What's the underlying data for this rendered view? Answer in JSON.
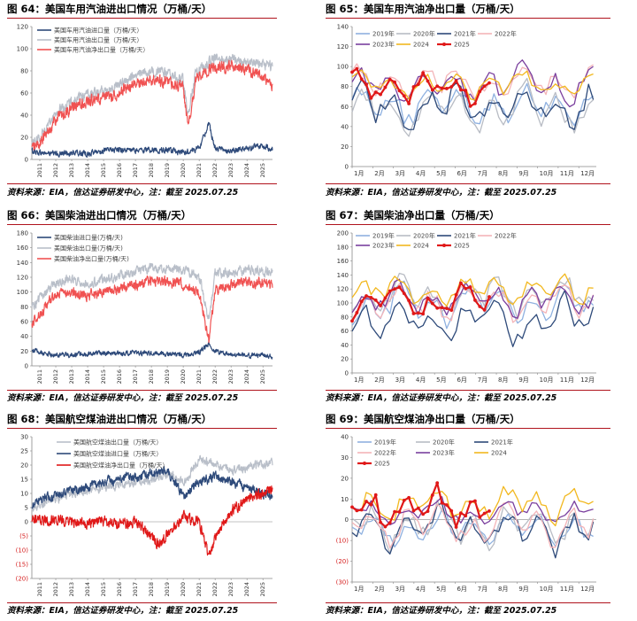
{
  "panels": [
    {
      "title": "图 64：美国车用汽油进出口情况（万桶/天）",
      "source": "资料来源：EIA，信达证券研发中心，注：截至 2025.07.25"
    },
    {
      "title": "图 65：美国车用汽油净出口量（万桶/天）",
      "source": "资料来源：EIA，信达证券研发中心，注：截至 2025.07.25"
    },
    {
      "title": "图 66：美国柴油进出口情况（万桶/天）",
      "source": "资料来源：EIA，信达证券研发中心，注：截至 2025.07.25"
    },
    {
      "title": "图 67：美国柴油净出口量（万桶/天）",
      "source": "资料来源：EIA，信达证券研发中心，注：截至 2025.07.25"
    },
    {
      "title": "图 68：美国航空煤油进出口情况（万桶/天）",
      "source": "资料来源：EIA，信达证券研发中心，注：截至 2025.07.25"
    },
    {
      "title": "图 69：美国航空煤油净出口量（万桶/天）",
      "source": "资料来源：EIA，信达证券研发中心，注：截至 2025.07.25"
    }
  ],
  "chart_data": [
    {
      "id": "c64",
      "type": "line",
      "ylim": [
        0,
        120
      ],
      "yticks": [
        0,
        20,
        40,
        60,
        80,
        100,
        120
      ],
      "xticks": [
        "2011",
        "2012",
        "2013",
        "2014",
        "2015",
        "2016",
        "2017",
        "2018",
        "2019",
        "2020",
        "2021",
        "2022",
        "2023",
        "2024",
        "2025"
      ],
      "legend_position": "top-left",
      "series": [
        {
          "name": "美国车用汽油进口量（万桶/天）",
          "color": "#2e4a7a",
          "anchors": [
            [
              2010.5,
              8
            ],
            [
              2011,
              6
            ],
            [
              2012,
              5
            ],
            [
              2013,
              6
            ],
            [
              2014,
              5
            ],
            [
              2015,
              8
            ],
            [
              2016,
              9
            ],
            [
              2017,
              8
            ],
            [
              2018,
              9
            ],
            [
              2019,
              8
            ],
            [
              2020,
              6
            ],
            [
              2021,
              10
            ],
            [
              2021.6,
              32
            ],
            [
              2022,
              10
            ],
            [
              2023,
              8
            ],
            [
              2024,
              10
            ],
            [
              2025,
              12
            ],
            [
              2025.55,
              10
            ]
          ],
          "noise": 4
        },
        {
          "name": "美国车用汽油出口量（万桶/天）",
          "color": "#b9bfc9",
          "anchors": [
            [
              2010.5,
              15
            ],
            [
              2011,
              20
            ],
            [
              2012,
              42
            ],
            [
              2013,
              52
            ],
            [
              2014,
              58
            ],
            [
              2015,
              62
            ],
            [
              2016,
              68
            ],
            [
              2017,
              76
            ],
            [
              2018,
              80
            ],
            [
              2019,
              78
            ],
            [
              2020,
              72
            ],
            [
              2020.3,
              40
            ],
            [
              2020.8,
              80
            ],
            [
              2021,
              82
            ],
            [
              2022,
              92
            ],
            [
              2023,
              90
            ],
            [
              2024,
              88
            ],
            [
              2025,
              86
            ],
            [
              2025.55,
              84
            ]
          ],
          "noise": 7
        },
        {
          "name": "美国车用汽油净出口量（万桶/天）",
          "color": "#f05252",
          "anchors": [
            [
              2010.5,
              10
            ],
            [
              2011,
              14
            ],
            [
              2012,
              36
            ],
            [
              2013,
              46
            ],
            [
              2014,
              52
            ],
            [
              2015,
              55
            ],
            [
              2016,
              60
            ],
            [
              2017,
              68
            ],
            [
              2018,
              72
            ],
            [
              2019,
              70
            ],
            [
              2020,
              65
            ],
            [
              2020.3,
              28
            ],
            [
              2020.8,
              72
            ],
            [
              2021,
              76
            ],
            [
              2022,
              84
            ],
            [
              2023,
              84
            ],
            [
              2024,
              80
            ],
            [
              2025,
              75
            ],
            [
              2025.55,
              68
            ]
          ],
          "noise": 8
        }
      ]
    },
    {
      "id": "c65",
      "type": "line",
      "ylim": [
        0,
        140
      ],
      "yticks": [
        0,
        20,
        40,
        60,
        80,
        100,
        120,
        140
      ],
      "xticks": [
        "1月",
        "2月",
        "3月",
        "4月",
        "5月",
        "6月",
        "7月",
        "8月",
        "9月",
        "10月",
        "11月",
        "12月"
      ],
      "legend_position": "top",
      "series": [
        {
          "name": "2019年",
          "color": "#8fb1e0",
          "base": 62,
          "amp": 18
        },
        {
          "name": "2020年",
          "color": "#b8bcc4",
          "base": 58,
          "amp": 22
        },
        {
          "name": "2021年",
          "color": "#2e4a7a",
          "base": 60,
          "amp": 22
        },
        {
          "name": "2022年",
          "color": "#f4b4b8",
          "base": 84,
          "amp": 16
        },
        {
          "name": "2023年",
          "color": "#7a3f9e",
          "base": 80,
          "amp": 20
        },
        {
          "name": "2024",
          "color": "#f2b81f",
          "base": 82,
          "amp": 12
        },
        {
          "name": "2025",
          "color": "#e01818",
          "base": 78,
          "amp": 16,
          "until": 30,
          "marker": true
        }
      ]
    },
    {
      "id": "c66",
      "type": "line",
      "ylim": [
        0,
        180
      ],
      "yticks": [
        0,
        20,
        40,
        60,
        80,
        100,
        120,
        140,
        160,
        180
      ],
      "xticks": [
        "2011",
        "2012",
        "2013",
        "2014",
        "2015",
        "2016",
        "2017",
        "2018",
        "2019",
        "2020",
        "2021",
        "2022",
        "2023",
        "2024",
        "2025"
      ],
      "legend_position": "top-left",
      "series": [
        {
          "name": "美国柴油进口量(万桶/天)",
          "color": "#2e4a7a",
          "anchors": [
            [
              2010.5,
              22
            ],
            [
              2011,
              18
            ],
            [
              2012,
              14
            ],
            [
              2013,
              15
            ],
            [
              2014,
              16
            ],
            [
              2015,
              18
            ],
            [
              2016,
              16
            ],
            [
              2017,
              18
            ],
            [
              2018,
              17
            ],
            [
              2019,
              16
            ],
            [
              2020,
              14
            ],
            [
              2021,
              18
            ],
            [
              2021.6,
              30
            ],
            [
              2022,
              20
            ],
            [
              2023,
              16
            ],
            [
              2024,
              14
            ],
            [
              2025,
              15
            ],
            [
              2025.55,
              12
            ]
          ],
          "noise": 5
        },
        {
          "name": "美国柴油出口量(万桶/天)",
          "color": "#b9bfc9",
          "anchors": [
            [
              2010.5,
              80
            ],
            [
              2011,
              92
            ],
            [
              2012,
              112
            ],
            [
              2013,
              118
            ],
            [
              2014,
              112
            ],
            [
              2015,
              118
            ],
            [
              2016,
              122
            ],
            [
              2017,
              128
            ],
            [
              2018,
              132
            ],
            [
              2019,
              132
            ],
            [
              2020,
              128
            ],
            [
              2021,
              122
            ],
            [
              2021.6,
              62
            ],
            [
              2022,
              124
            ],
            [
              2023,
              126
            ],
            [
              2024,
              130
            ],
            [
              2025,
              128
            ],
            [
              2025.55,
              126
            ]
          ],
          "noise": 10
        },
        {
          "name": "美国柴油净出口量(万桶/天)",
          "color": "#f05252",
          "anchors": [
            [
              2010.5,
              58
            ],
            [
              2011,
              70
            ],
            [
              2012,
              96
            ],
            [
              2013,
              100
            ],
            [
              2014,
              96
            ],
            [
              2015,
              100
            ],
            [
              2016,
              104
            ],
            [
              2017,
              110
            ],
            [
              2018,
              114
            ],
            [
              2019,
              114
            ],
            [
              2020,
              110
            ],
            [
              2021,
              100
            ],
            [
              2021.6,
              34
            ],
            [
              2022,
              104
            ],
            [
              2023,
              108
            ],
            [
              2024,
              114
            ],
            [
              2025,
              112
            ],
            [
              2025.55,
              110
            ]
          ],
          "noise": 11
        }
      ]
    },
    {
      "id": "c67",
      "type": "line",
      "ylim": [
        0,
        200
      ],
      "yticks": [
        0,
        20,
        40,
        60,
        80,
        100,
        120,
        140,
        160,
        180,
        200
      ],
      "xticks": [
        "1月",
        "2月",
        "3月",
        "4月",
        "5月",
        "6月",
        "7月",
        "8月",
        "9月",
        "10月",
        "11月",
        "12月"
      ],
      "legend_position": "top",
      "series": [
        {
          "name": "2019年",
          "color": "#8fb1e0",
          "base": 100,
          "amp": 28
        },
        {
          "name": "2020年",
          "color": "#b8bcc4",
          "base": 110,
          "amp": 25
        },
        {
          "name": "2021年",
          "color": "#2e4a7a",
          "base": 78,
          "amp": 32
        },
        {
          "name": "2022年",
          "color": "#f4b4b8",
          "base": 102,
          "amp": 25
        },
        {
          "name": "2023年",
          "color": "#7a3f9e",
          "base": 105,
          "amp": 22
        },
        {
          "name": "2024",
          "color": "#f2b81f",
          "base": 118,
          "amp": 20
        },
        {
          "name": "2025",
          "color": "#e01818",
          "base": 100,
          "amp": 24,
          "until": 30,
          "marker": true
        }
      ]
    },
    {
      "id": "c68",
      "type": "line",
      "ylim": [
        -20,
        30
      ],
      "yticks": [
        -20,
        -15,
        -10,
        -5,
        0,
        5,
        10,
        15,
        20,
        25,
        30
      ],
      "ytick_labels": [
        "(20)",
        "(15)",
        "(10)",
        "(5)",
        "0",
        "5",
        "10",
        "15",
        "20",
        "25",
        "30"
      ],
      "xticks": [
        "2011",
        "2012",
        "2013",
        "2014",
        "2015",
        "2016",
        "2017",
        "2018",
        "2019",
        "2020",
        "2021",
        "2022",
        "2023",
        "2024",
        "2025"
      ],
      "legend_position": "top-left",
      "series": [
        {
          "name": "美国航空煤油出口量（万桶/天）",
          "color": "#b9bfc9",
          "anchors": [
            [
              2010.5,
              5
            ],
            [
              2011,
              6
            ],
            [
              2012,
              8
            ],
            [
              2013,
              10
            ],
            [
              2014,
              11
            ],
            [
              2015,
              12
            ],
            [
              2016,
              13
            ],
            [
              2017,
              14
            ],
            [
              2018,
              15
            ],
            [
              2019,
              17
            ],
            [
              2020,
              14
            ],
            [
              2021,
              22
            ],
            [
              2022,
              20
            ],
            [
              2022.5,
              19
            ],
            [
              2023,
              18
            ],
            [
              2024,
              19
            ],
            [
              2025,
              20
            ],
            [
              2025.55,
              21
            ]
          ],
          "noise": 2.5
        },
        {
          "name": "美国航空煤油进口量（万桶/天）",
          "color": "#2e4a7a",
          "anchors": [
            [
              2010.5,
              6
            ],
            [
              2011,
              8
            ],
            [
              2012,
              9
            ],
            [
              2013,
              11
            ],
            [
              2014,
              12
            ],
            [
              2015,
              14
            ],
            [
              2016,
              15
            ],
            [
              2017,
              16
            ],
            [
              2018,
              17
            ],
            [
              2019,
              18
            ],
            [
              2020,
              9
            ],
            [
              2021,
              14
            ],
            [
              2022,
              16
            ],
            [
              2023,
              14
            ],
            [
              2024,
              12
            ],
            [
              2025,
              10
            ],
            [
              2025.55,
              9
            ]
          ],
          "noise": 2.5
        },
        {
          "name": "美国航空煤油净出口量（万桶/天）",
          "color": "#e01818",
          "anchors": [
            [
              2010.5,
              1
            ],
            [
              2011,
              0
            ],
            [
              2012,
              1
            ],
            [
              2013,
              0
            ],
            [
              2014,
              -1
            ],
            [
              2015,
              0
            ],
            [
              2016,
              -1
            ],
            [
              2017,
              0
            ],
            [
              2018,
              -5
            ],
            [
              2018.5,
              -8
            ],
            [
              2019,
              -4
            ],
            [
              2020,
              2
            ],
            [
              2021,
              0
            ],
            [
              2021.6,
              -12
            ],
            [
              2022,
              -6
            ],
            [
              2023,
              4
            ],
            [
              2024,
              8
            ],
            [
              2025,
              10
            ],
            [
              2025.55,
              12
            ]
          ],
          "noise": 3
        }
      ]
    },
    {
      "id": "c69",
      "type": "line",
      "ylim": [
        -30,
        40
      ],
      "yticks": [
        -30,
        -20,
        -10,
        0,
        10,
        20,
        30,
        40
      ],
      "ytick_labels": [
        "(30)",
        "(20)",
        "(10)",
        "0",
        "10",
        "20",
        "30",
        "40"
      ],
      "xticks": [
        "1月",
        "2月",
        "3月",
        "4月",
        "5月",
        "6月",
        "7月",
        "8月",
        "9月",
        "10月",
        "11月",
        "12月"
      ],
      "legend_position": "top",
      "series": [
        {
          "name": "2019年",
          "color": "#8fb1e0",
          "base": -4,
          "amp": 8
        },
        {
          "name": "2020年",
          "color": "#b8bcc4",
          "base": -3,
          "amp": 10
        },
        {
          "name": "2021年",
          "color": "#2e4a7a",
          "base": -4,
          "amp": 10
        },
        {
          "name": "2022年",
          "color": "#f4b4b8",
          "base": -2,
          "amp": 10
        },
        {
          "name": "2023年",
          "color": "#7a3f9e",
          "base": 4,
          "amp": 6
        },
        {
          "name": "2024",
          "color": "#f2b81f",
          "base": 8,
          "amp": 8
        },
        {
          "name": "2025",
          "color": "#e01818",
          "base": 6,
          "amp": 9,
          "until": 30,
          "marker": true
        }
      ]
    }
  ]
}
